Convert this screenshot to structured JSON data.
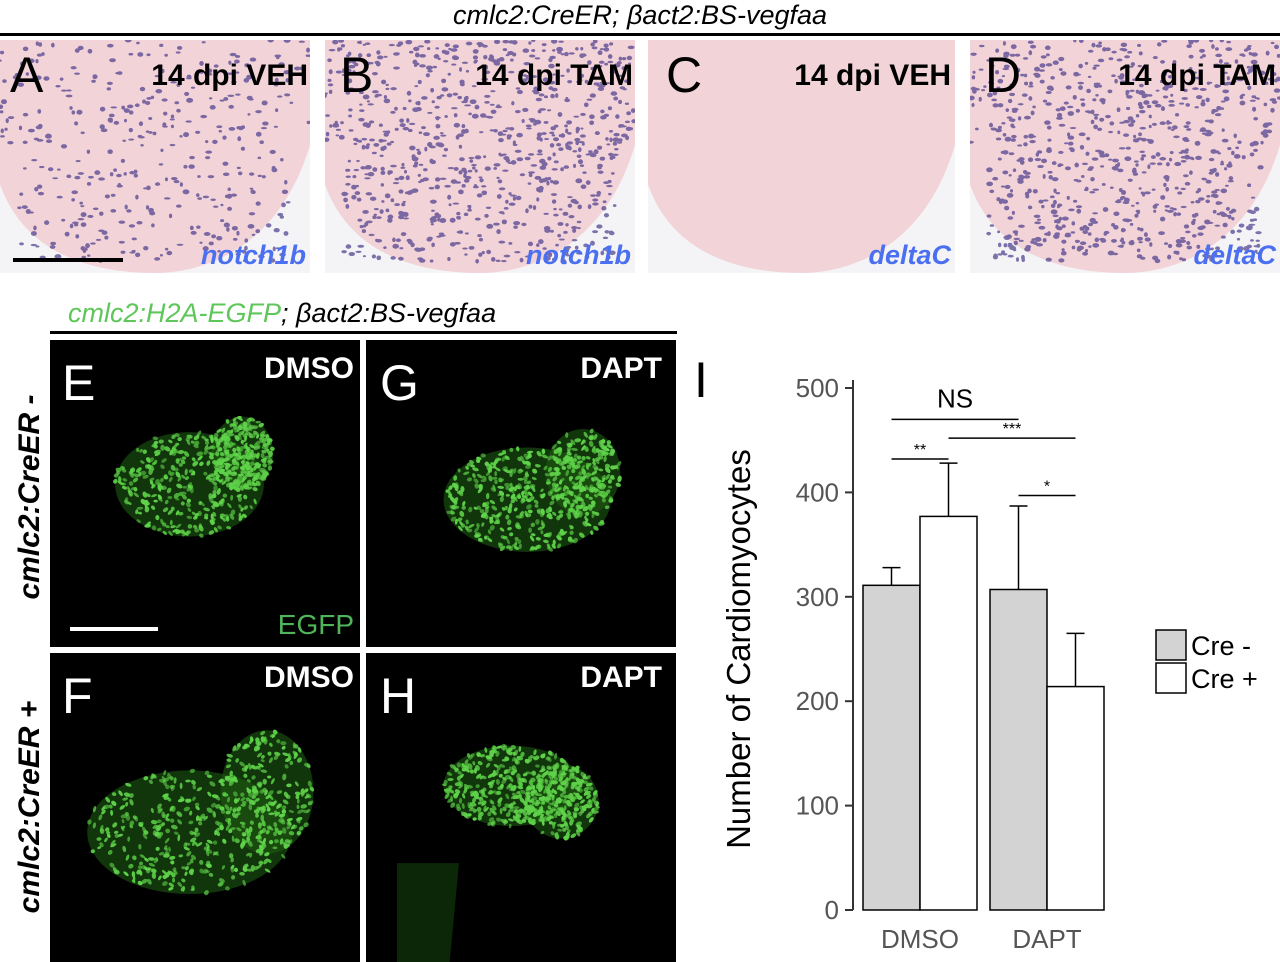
{
  "figure": {
    "top_title": "cmlc2:CreER; βact2:BS-vegfaa",
    "ish_panels": [
      {
        "letter": "A",
        "condition": "14 dpi VEH",
        "gene": "notch1b",
        "stain": "medium"
      },
      {
        "letter": "B",
        "condition": "14 dpi TAM",
        "gene": "notch1b",
        "stain": "high"
      },
      {
        "letter": "C",
        "condition": "14 dpi VEH",
        "gene": "deltaC",
        "stain": "none"
      },
      {
        "letter": "D",
        "condition": "14 dpi TAM",
        "gene": "deltaC",
        "stain": "high"
      }
    ],
    "mid_title_green": "cmlc2:H2A-EGFP",
    "mid_title_black": "; βact2:BS-vegfaa",
    "row_labels": {
      "top": "cmlc2:CreER -",
      "bottom": "cmlc2:CreER +"
    },
    "fl_panels": [
      {
        "letter": "E",
        "condition": "DMSO"
      },
      {
        "letter": "G",
        "condition": "DAPT"
      },
      {
        "letter": "F",
        "condition": "DMSO"
      },
      {
        "letter": "H",
        "condition": "DAPT"
      }
    ],
    "egfp_label": "EGFP",
    "chart_letter": "I"
  },
  "colors": {
    "ish_background": "#f2d3d8",
    "ish_stain": "#4a3c8c",
    "gene_label": "#4a6ff0",
    "egfp_green": "#5fd34a",
    "bar_cre_minus": "#d3d3d3",
    "bar_cre_plus": "#ffffff"
  },
  "chart_data": {
    "type": "bar",
    "categories": [
      "DMSO",
      "DAPT"
    ],
    "series": [
      {
        "name": "Cre -",
        "values": [
          311,
          307
        ],
        "errors": [
          17,
          80
        ]
      },
      {
        "name": "Cre +",
        "values": [
          377,
          214
        ],
        "errors": [
          51,
          51
        ]
      }
    ],
    "ylabel": "Number of Cardiomyocytes",
    "ylim": [
      0,
      500
    ],
    "yticks": [
      0,
      100,
      200,
      300,
      400,
      500
    ],
    "legend_position": "right",
    "annotations": [
      "NS",
      "**",
      "***",
      "*"
    ]
  }
}
